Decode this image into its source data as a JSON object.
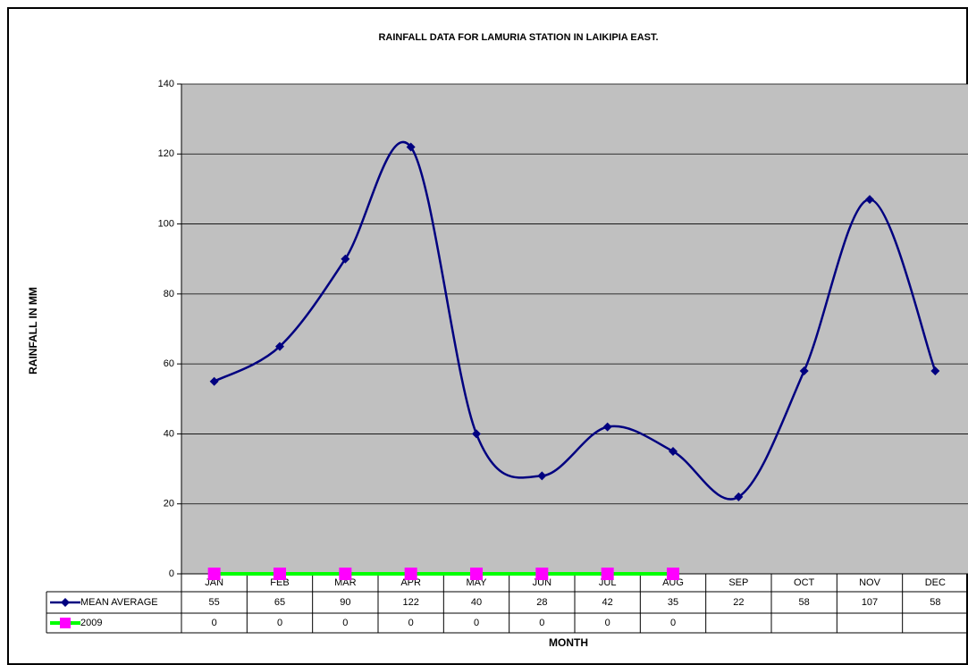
{
  "chart_data": {
    "type": "line",
    "title": "RAINFALL DATA FOR LAMURIA STATION IN LAIKIPIA EAST.",
    "x_label": "MONTH",
    "y_label": "RAINFALL IN MM",
    "categories": [
      "JAN",
      "FEB",
      "MAR",
      "APR",
      "MAY",
      "JUN",
      "JUL",
      "AUG",
      "SEP",
      "OCT",
      "NOV",
      "DEC"
    ],
    "series": [
      {
        "name": "MEAN AVERAGE",
        "color": "#000080",
        "marker": "diamond",
        "smooth": true,
        "values": [
          55,
          65,
          90,
          122,
          40,
          28,
          42,
          35,
          22,
          58,
          107,
          58
        ]
      },
      {
        "name": "2009",
        "color": "#00ff00",
        "marker_color": "#ff00ff",
        "marker": "square",
        "smooth": false,
        "values": [
          0,
          0,
          0,
          0,
          0,
          0,
          0,
          0,
          null,
          null,
          null,
          null
        ]
      }
    ],
    "ylim": [
      0,
      140
    ],
    "yticks": [
      0,
      20,
      40,
      60,
      80,
      100,
      120,
      140
    ],
    "grid": true,
    "data_table": true
  }
}
